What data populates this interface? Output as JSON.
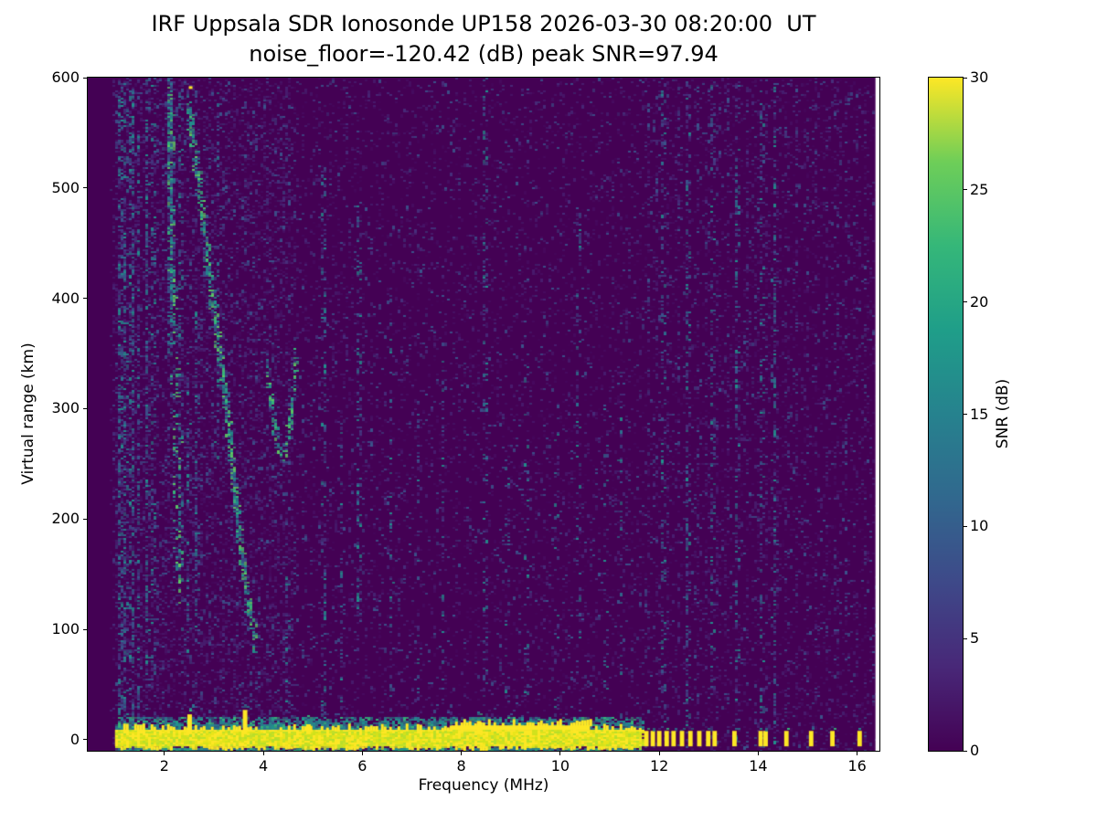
{
  "chart_data": {
    "type": "heatmap",
    "title": "IRF Uppsala SDR Ionosonde UP158 2026-03-30 08:20:00  UT",
    "subtitle": "noise_floor=-120.42 (dB) peak SNR=97.94",
    "station": "IRF Uppsala SDR Ionosonde UP158",
    "timestamp_ut": "2026-03-30 08:20:00",
    "noise_floor_db": -120.42,
    "peak_snr_db": 97.94,
    "xlabel": "Frequency (MHz)",
    "ylabel": "Virtual range (km)",
    "x_range": [
      0.45,
      16.45
    ],
    "y_range": [
      -10,
      600
    ],
    "x_ticks": [
      2,
      4,
      6,
      8,
      10,
      12,
      14,
      16
    ],
    "y_ticks": [
      0,
      100,
      200,
      300,
      400,
      500,
      600
    ],
    "grid": false,
    "colorbar": {
      "label": "SNR (dB)",
      "range": [
        0,
        30
      ],
      "ticks": [
        0,
        5,
        10,
        15,
        20,
        25,
        30
      ],
      "colormap": "viridis",
      "stops": [
        [
          0,
          "#440154"
        ],
        [
          0.125,
          "#482878"
        ],
        [
          0.25,
          "#3e4989"
        ],
        [
          0.375,
          "#31688e"
        ],
        [
          0.5,
          "#26828e"
        ],
        [
          0.625,
          "#1f9e89"
        ],
        [
          0.75,
          "#35b779"
        ],
        [
          0.875,
          "#6ece58"
        ],
        [
          1,
          "#fde725"
        ]
      ]
    },
    "colors": {
      "background": "#440154",
      "speckle_dark": [
        "#470b60",
        "#481d6f",
        "#472d7b",
        "#3b528b"
      ],
      "speckle_mid": [
        "#453781",
        "#3b528b",
        "#2c718e",
        "#21918c"
      ],
      "trace": [
        "#21918c",
        "#26828e",
        "#35b779",
        "#5ec962",
        "#3b528b"
      ],
      "fringe": [
        "#21918c",
        "#26828e",
        "#2c718e",
        "#35b779"
      ],
      "band_yellow": [
        "#fde725",
        "#e8e419",
        "#d0e11c",
        "#b5de2b"
      ],
      "hot": "#fde725",
      "no_data": "#ffffff"
    },
    "features": {
      "background_snr_db": 0,
      "no_data_band": {
        "f_start": 16.37
      },
      "speckle_noise": {
        "count": 12000,
        "f_start": 0.9,
        "f_end": 16.36,
        "extra_left_count": 5000,
        "extra_left_f_range": [
          0.95,
          4.6
        ]
      },
      "ground_band": {
        "f_start": 1.0,
        "f_end": 11.65,
        "r_bottom": -6,
        "r_top": 9,
        "snr_db": 30,
        "thick_regions": [
          {
            "f_start": 7.8,
            "f_end": 10.6,
            "r_top": 13
          }
        ],
        "spikes": [
          {
            "f": 2.5,
            "r_top": 23
          },
          {
            "f": 3.62,
            "r_top": 27
          },
          {
            "f": 4.9,
            "r_top": 14
          },
          {
            "f": 8.35,
            "r_top": 17
          }
        ]
      },
      "fringe": {
        "r_top_max": 21,
        "count": 2600,
        "below_count": 700
      },
      "pulses": {
        "r_bottom": -6,
        "r_top": 8,
        "width_mhz": 0.09,
        "snr_db": 30,
        "freqs": [
          11.74,
          11.87,
          12.0,
          12.15,
          12.29,
          12.46,
          12.63,
          12.81,
          12.99,
          13.12,
          13.52,
          14.05,
          14.15,
          14.57,
          15.07,
          15.5,
          16.05
        ]
      },
      "periodic_rfi": {
        "f_start": 11.75,
        "f_end": 16.3,
        "step_mhz": 0.2,
        "density": 0.1,
        "strong_freqs": [
          12.05,
          12.55,
          13.05,
          13.55,
          14.05,
          14.3
        ]
      },
      "rfi_columns": [
        {
          "f": 1.08,
          "w": 0.05,
          "r0": -8,
          "r1": 600,
          "density": 0.5
        },
        {
          "f": 1.18,
          "w": 0.05,
          "r0": -8,
          "r1": 600,
          "density": 0.35
        },
        {
          "f": 1.32,
          "w": 0.06,
          "r0": -8,
          "r1": 600,
          "density": 0.4
        },
        {
          "f": 1.45,
          "w": 0.04,
          "r0": 0,
          "r1": 550,
          "density": 0.2
        },
        {
          "f": 1.62,
          "w": 0.05,
          "r0": 60,
          "r1": 600,
          "density": 0.3
        },
        {
          "f": 1.75,
          "w": 0.04,
          "r0": 60,
          "r1": 600,
          "density": 0.2
        },
        {
          "f": 2.1,
          "w": 0.08,
          "r0": 350,
          "r1": 600,
          "density": 0.8
        },
        {
          "f": 2.3,
          "w": 0.05,
          "r0": 150,
          "r1": 600,
          "density": 0.25
        },
        {
          "f": 2.45,
          "w": 0.05,
          "r0": 80,
          "r1": 350,
          "density": 0.2
        },
        {
          "f": 2.62,
          "w": 0.05,
          "r0": 100,
          "r1": 420,
          "density": 0.2
        },
        {
          "f": 3.05,
          "w": 0.04,
          "r0": 250,
          "r1": 600,
          "density": 0.15
        },
        {
          "f": 4.45,
          "w": 0.04,
          "r0": -5,
          "r1": 160,
          "density": 0.2
        },
        {
          "f": 5.2,
          "w": 0.06,
          "r0": -5,
          "r1": 520,
          "density": 0.22
        },
        {
          "f": 5.55,
          "w": 0.04,
          "r0": 0,
          "r1": 300,
          "density": 0.1
        },
        {
          "f": 5.9,
          "w": 0.05,
          "r0": 120,
          "r1": 500,
          "density": 0.25
        },
        {
          "f": 6.55,
          "w": 0.04,
          "r0": -5,
          "r1": 420,
          "density": 0.12
        },
        {
          "f": 7.1,
          "w": 0.04,
          "r0": -5,
          "r1": 300,
          "density": 0.1
        },
        {
          "f": 7.6,
          "w": 0.04,
          "r0": 0,
          "r1": 350,
          "density": 0.08
        },
        {
          "f": 8.45,
          "w": 0.07,
          "r0": -5,
          "r1": 600,
          "density": 0.18
        },
        {
          "f": 8.9,
          "w": 0.04,
          "r0": 0,
          "r1": 250,
          "density": 0.08
        },
        {
          "f": 9.3,
          "w": 0.04,
          "r0": 0,
          "r1": 350,
          "density": 0.1
        },
        {
          "f": 9.9,
          "w": 0.04,
          "r0": 0,
          "r1": 300,
          "density": 0.08
        },
        {
          "f": 10.35,
          "w": 0.05,
          "r0": 0,
          "r1": 480,
          "density": 0.12
        },
        {
          "f": 10.9,
          "w": 0.04,
          "r0": 0,
          "r1": 300,
          "density": 0.08
        },
        {
          "f": 11.2,
          "w": 0.04,
          "r0": 0,
          "r1": 350,
          "density": 0.1
        }
      ],
      "echo_trace": {
        "segments": [
          {
            "name": "vertical-scatter-2.1MHz",
            "points": [
              [
                2.08,
                600
              ],
              [
                2.1,
                520
              ],
              [
                2.12,
                450
              ],
              [
                2.15,
                400
              ],
              [
                2.18,
                380
              ]
            ],
            "spread_f": 0.06,
            "spread_r": 25,
            "density": 2
          },
          {
            "name": "vertical-scatter-tail",
            "points": [
              [
                2.2,
                350
              ],
              [
                2.25,
                200
              ],
              [
                2.3,
                120
              ]
            ],
            "spread_f": 0.08,
            "spread_r": 40,
            "density": 1
          },
          {
            "name": "descending-leg",
            "points": [
              [
                2.45,
                575
              ],
              [
                2.55,
                545
              ],
              [
                2.65,
                510
              ],
              [
                2.78,
                465
              ],
              [
                2.9,
                415
              ],
              [
                3.0,
                380
              ],
              [
                3.1,
                350
              ],
              [
                3.2,
                315
              ],
              [
                3.3,
                275
              ],
              [
                3.4,
                230
              ],
              [
                3.5,
                185
              ],
              [
                3.6,
                145
              ],
              [
                3.7,
                112
              ],
              [
                3.78,
                97
              ],
              [
                3.85,
                92
              ]
            ],
            "spread_f": 0.04,
            "spread_r": 14,
            "density": 3
          },
          {
            "name": "cusp",
            "points": [
              [
                4.05,
                340
              ],
              [
                4.15,
                300
              ],
              [
                4.25,
                275
              ],
              [
                4.35,
                262
              ],
              [
                4.45,
                268
              ],
              [
                4.52,
                290
              ],
              [
                4.58,
                318
              ],
              [
                4.63,
                350
              ]
            ],
            "spread_f": 0.03,
            "spread_r": 10,
            "density": 2
          }
        ],
        "hot_pixels": [
          [
            2.52,
            591
          ]
        ]
      }
    }
  }
}
